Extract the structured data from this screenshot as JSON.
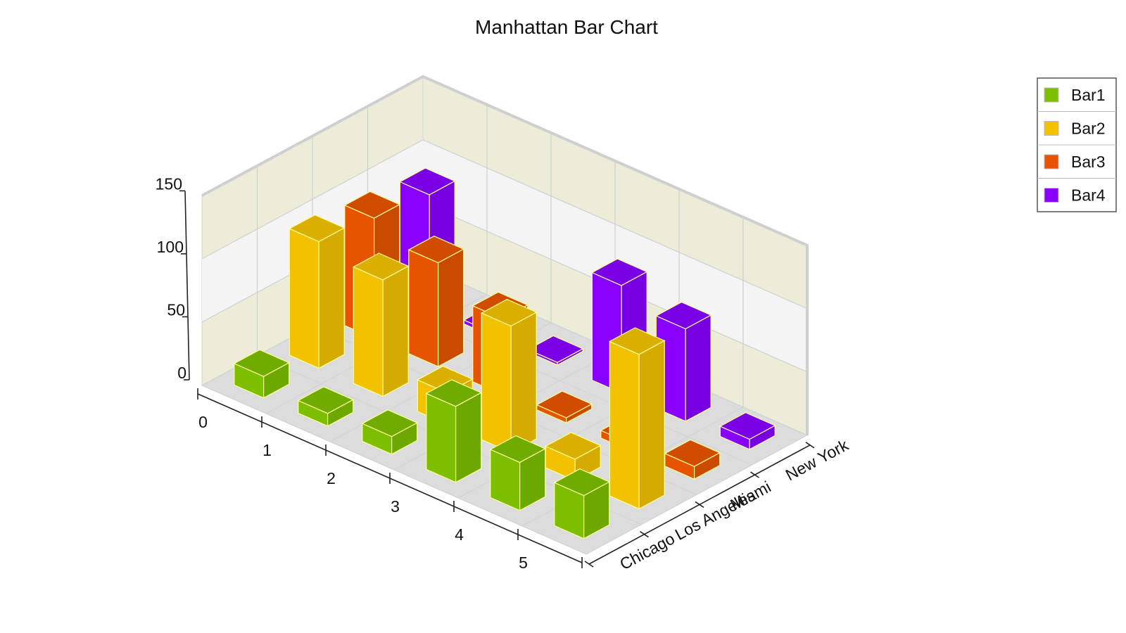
{
  "chart_data": {
    "type": "bar",
    "subtype": "3d-manhattan",
    "title": "Manhattan Bar Chart",
    "x_categories": [
      "0",
      "1",
      "2",
      "3",
      "4",
      "5"
    ],
    "z_categories": [
      "Chicago",
      "Los Angeles",
      "Miami",
      "New York"
    ],
    "ylim": [
      0,
      150
    ],
    "y_ticks": [
      "0",
      "50",
      "100",
      "150"
    ],
    "grid": true,
    "legend_position": "top-right",
    "series": [
      {
        "name": "Bar1",
        "color": "#7cbf00",
        "values": [
          17,
          10,
          14,
          60,
          38,
          34
        ]
      },
      {
        "name": "Bar2",
        "color": "#f2c200",
        "values": [
          100,
          92,
          25,
          100,
          17,
          122
        ]
      },
      {
        "name": "Bar3",
        "color": "#e65400",
        "values": [
          95,
          82,
          60,
          4,
          6,
          10
        ]
      },
      {
        "name": "Bar4",
        "color": "#8800ff",
        "values": [
          90,
          3,
          2,
          85,
          73,
          8
        ]
      }
    ]
  }
}
